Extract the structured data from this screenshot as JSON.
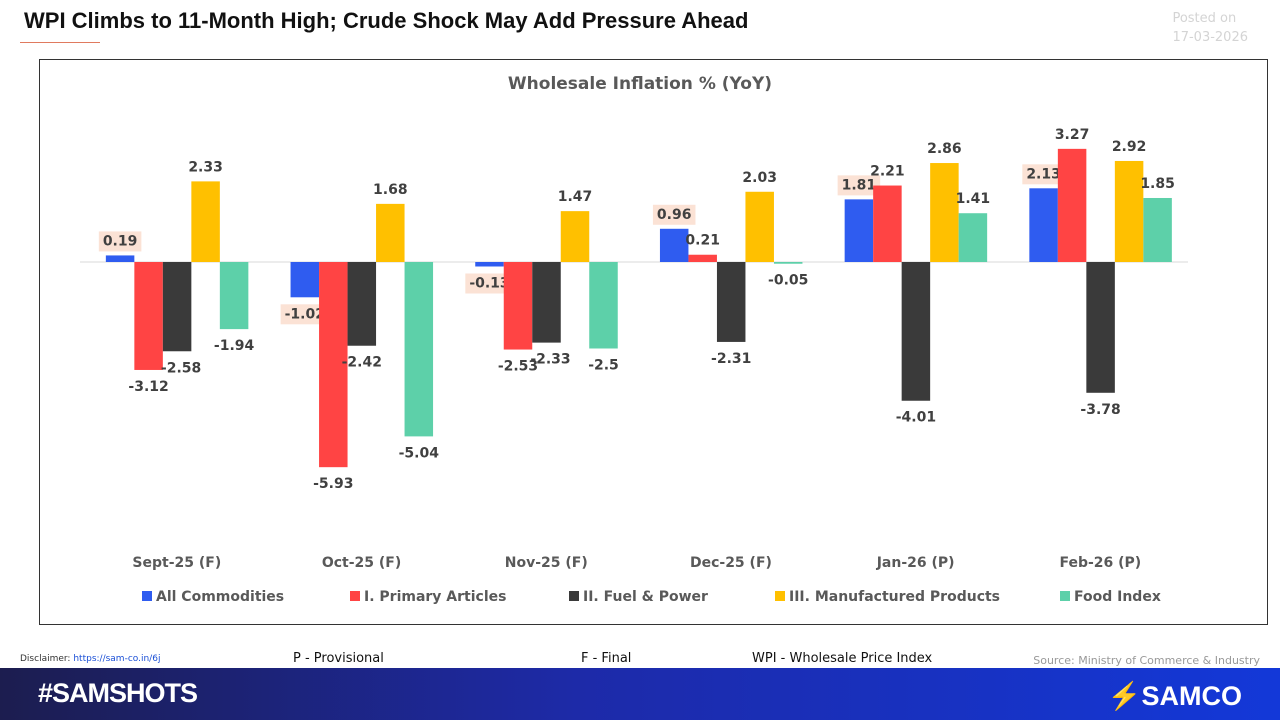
{
  "header": {
    "title": "WPI Climbs to 11-Month High; Crude Shock May Add Pressure Ahead",
    "posted_label": "Posted on",
    "posted_date": "17-03-2026"
  },
  "chart_data": {
    "type": "bar",
    "title": "Wholesale Inflation % (YoY)",
    "categories": [
      "Sept-25 (F)",
      "Oct-25 (F)",
      "Nov-25 (F)",
      "Dec-25 (F)",
      "Jan-26 (P)",
      "Feb-26 (P)"
    ],
    "series": [
      {
        "name": "All Commodities",
        "color": "#2f5cf0",
        "values": [
          0.19,
          -1.02,
          -0.13,
          0.96,
          1.81,
          2.13
        ],
        "label_highlight": "#fbe2d5"
      },
      {
        "name": "I. Primary Articles",
        "color": "#ff4444",
        "values": [
          -3.12,
          -5.93,
          -2.53,
          0.21,
          2.21,
          3.27
        ]
      },
      {
        "name": "II. Fuel & Power",
        "color": "#3a3a3a",
        "values": [
          -2.58,
          -2.42,
          -2.33,
          -2.31,
          -4.01,
          -3.78
        ]
      },
      {
        "name": "III. Manufactured Products",
        "color": "#ffc000",
        "values": [
          2.33,
          1.68,
          1.47,
          2.03,
          2.86,
          2.92
        ]
      },
      {
        "name": "Food Index",
        "color": "#5dd0a9",
        "values": [
          -1.94,
          -5.04,
          -2.5,
          -0.05,
          1.41,
          1.85
        ]
      }
    ],
    "legend": "bottom",
    "grid": false,
    "data_labels": true
  },
  "footer": {
    "disclaimer_label": "Disclaimer:",
    "disclaimer_link": "https://sam-co.in/6j",
    "note_p": "P - Provisional",
    "note_f": "F -  Final",
    "note_wpi": "WPI - Wholesale Price Index",
    "source": "Source: Ministry of Commerce & Industry",
    "hashtag": "#SAMSHOTS",
    "brand": "SAMCO"
  }
}
